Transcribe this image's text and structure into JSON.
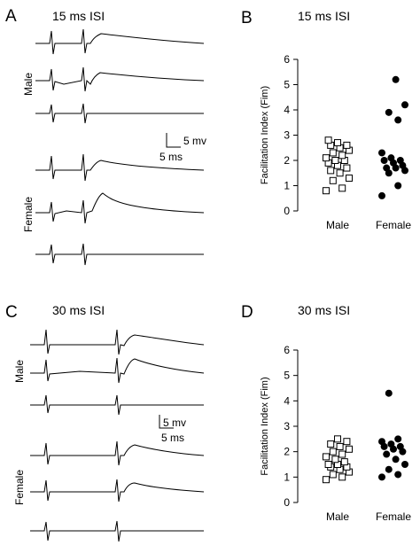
{
  "panels": {
    "A": {
      "letter": "A",
      "title": "15 ms ISI",
      "group_male": "Male",
      "group_female": "Female",
      "scale_y": "5 mv",
      "scale_x": "5 ms"
    },
    "B": {
      "letter": "B",
      "title": "15 ms ISI"
    },
    "C": {
      "letter": "C",
      "title": "30 ms ISI",
      "group_male": "Male",
      "group_female": "Female",
      "scale_y": "5 mv",
      "scale_x": "5 ms"
    },
    "D": {
      "letter": "D",
      "title": "30 ms ISI"
    }
  },
  "colors": {
    "male_marker": "#ffffff",
    "female_marker": "#000000",
    "ink": "#000000"
  },
  "chart_data": [
    {
      "type": "scatter",
      "panel": "B",
      "title": "15 ms ISI",
      "ylabel": "Facilitation Index (Fim)",
      "xlabel": "",
      "ylim": [
        0,
        6
      ],
      "yticks": [
        0,
        1,
        2,
        3,
        4,
        5,
        6
      ],
      "categories": [
        "Male",
        "Female"
      ],
      "series": [
        {
          "name": "Male",
          "marker": "open-square",
          "values": [
            0.8,
            0.9,
            1.2,
            1.3,
            1.5,
            1.6,
            1.7,
            1.8,
            1.9,
            2.0,
            2.0,
            2.1,
            2.2,
            2.3,
            2.4,
            2.5,
            2.6,
            2.6,
            2.7,
            2.8
          ]
        },
        {
          "name": "Female",
          "marker": "filled-circle",
          "values": [
            0.6,
            1.0,
            1.5,
            1.6,
            1.7,
            1.7,
            1.8,
            1.9,
            2.0,
            2.0,
            2.1,
            2.3,
            3.6,
            3.9,
            4.2,
            5.2
          ]
        }
      ]
    },
    {
      "type": "scatter",
      "panel": "D",
      "title": "30 ms ISI",
      "ylabel": "Facilitation Index (Fim)",
      "xlabel": "",
      "ylim": [
        0,
        6
      ],
      "yticks": [
        0,
        1,
        2,
        3,
        4,
        5,
        6
      ],
      "categories": [
        "Male",
        "Female"
      ],
      "series": [
        {
          "name": "Male",
          "marker": "open-square",
          "values": [
            0.9,
            1.0,
            1.1,
            1.2,
            1.3,
            1.4,
            1.4,
            1.5,
            1.5,
            1.6,
            1.7,
            1.8,
            1.9,
            2.0,
            2.1,
            2.2,
            2.3,
            2.4,
            2.5
          ]
        },
        {
          "name": "Female",
          "marker": "filled-circle",
          "values": [
            1.0,
            1.1,
            1.3,
            1.5,
            1.7,
            1.9,
            2.0,
            2.1,
            2.2,
            2.2,
            2.3,
            2.4,
            2.5,
            4.3
          ]
        }
      ]
    }
  ]
}
